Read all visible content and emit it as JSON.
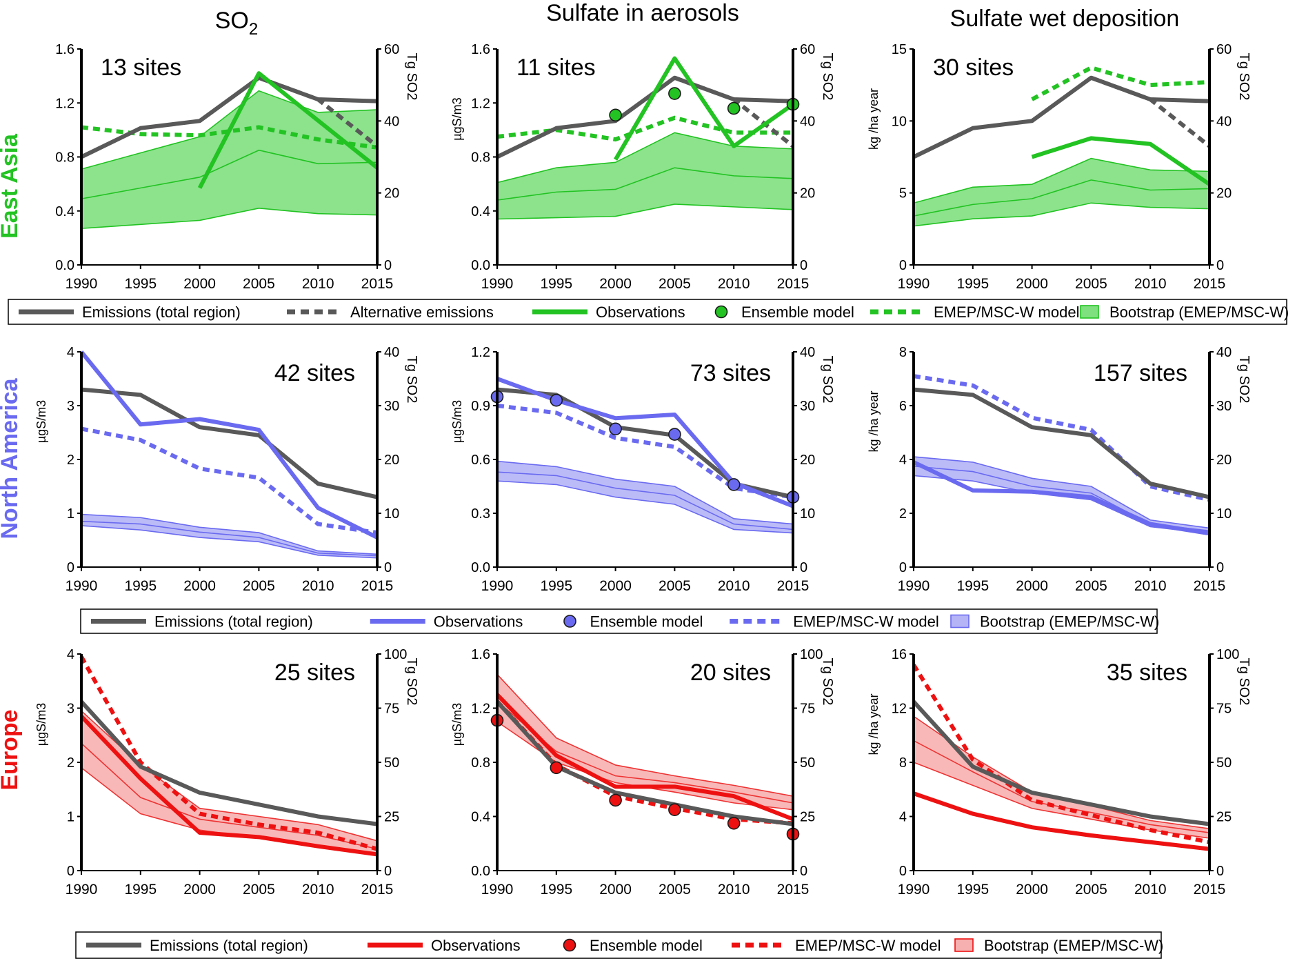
{
  "column_titles": [
    "SO",
    "Sulfate in aerosols",
    "Sulfate  wet deposition"
  ],
  "so2_title_subscript": "2",
  "row_labels": [
    "East Asia",
    "North America",
    "Europe"
  ],
  "colors": {
    "emissions": "#595959",
    "east_asia": "#22c322",
    "east_asia_fill": "#7fe07f",
    "east_asia_fill_line": "#22c322",
    "north_america": "#6a6af0",
    "north_america_fill": "#b4b4f7",
    "north_america_fill_line": "#6a6af0",
    "europe": "#ee1111",
    "europe_fill": "#f7b0b0",
    "europe_fill_line": "#ee3333"
  },
  "legends": [
    {
      "row": 0,
      "items": [
        {
          "label": "Emissions (total region)",
          "type": "solid",
          "color": "emissions"
        },
        {
          "label": "Alternative emissions",
          "type": "dash",
          "color": "emissions"
        },
        {
          "label": "Observations",
          "type": "solid",
          "color": "east_asia"
        },
        {
          "label": "Ensemble model",
          "type": "circle",
          "color": "east_asia"
        },
        {
          "label": "EMEP/MSC-W model",
          "type": "dash",
          "color": "east_asia"
        },
        {
          "label": "Bootstrap (EMEP/MSC-W)",
          "type": "box",
          "color": "east_asia"
        }
      ]
    },
    {
      "row": 1,
      "items": [
        {
          "label": "Emissions (total region)",
          "type": "solid",
          "color": "emissions"
        },
        {
          "label": "Observations",
          "type": "solid",
          "color": "north_america"
        },
        {
          "label": "Ensemble model",
          "type": "circle",
          "color": "north_america"
        },
        {
          "label": "EMEP/MSC-W model",
          "type": "dash",
          "color": "north_america"
        },
        {
          "label": "Bootstrap (EMEP/MSC-W)",
          "type": "box",
          "color": "north_america"
        }
      ]
    },
    {
      "row": 2,
      "items": [
        {
          "label": "Emissions (total region)",
          "type": "solid",
          "color": "emissions"
        },
        {
          "label": "Observations",
          "type": "solid",
          "color": "europe"
        },
        {
          "label": "Ensemble model",
          "type": "circle",
          "color": "europe"
        },
        {
          "label": "EMEP/MSC-W model",
          "type": "dash",
          "color": "europe"
        },
        {
          "label": "Bootstrap (EMEP/MSC-W)",
          "type": "box",
          "color": "europe"
        }
      ]
    }
  ],
  "chart_data": [
    {
      "type": "line",
      "row": 0,
      "col": 0,
      "region": "east_asia",
      "annotation": "13 sites",
      "x": [
        1990,
        1995,
        2000,
        2005,
        2010,
        2015
      ],
      "ylabel": "",
      "ylim": [
        0,
        1.6
      ],
      "yticks": [
        "0.0",
        "0.4",
        "0.8",
        "1.2",
        "1.6"
      ],
      "y2label": "Tg SO2",
      "y2lim": [
        0,
        60
      ],
      "y2ticks": [
        "0",
        "20",
        "40",
        "60"
      ],
      "emissions": [
        30,
        38,
        40,
        52,
        46,
        45.5
      ],
      "alt_emissions": {
        "x": [
          2005,
          2010,
          2015
        ],
        "values": [
          52,
          46,
          33
        ]
      },
      "observations": {
        "x": [
          2000,
          2005,
          2015
        ],
        "values": [
          0.57,
          1.42,
          0.72
        ]
      },
      "ensemble": null,
      "emep": [
        1.02,
        0.97,
        0.96,
        1.02,
        0.93,
        0.87
      ],
      "bootstrap": {
        "lower": [
          0.27,
          0.3,
          0.33,
          0.42,
          0.38,
          0.37
        ],
        "median": [
          0.49,
          0.57,
          0.65,
          0.85,
          0.75,
          0.76
        ],
        "upper": [
          0.71,
          0.83,
          0.95,
          1.29,
          1.13,
          1.15
        ]
      }
    },
    {
      "type": "line",
      "row": 0,
      "col": 1,
      "region": "east_asia",
      "annotation": "11 sites",
      "x": [
        1990,
        1995,
        2000,
        2005,
        2010,
        2015
      ],
      "ylabel": "µgS/m3",
      "ylim": [
        0,
        1.6
      ],
      "yticks": [
        "0.0",
        "0.4",
        "0.8",
        "1.2",
        "1.6"
      ],
      "y2label": "Tg SO2",
      "y2lim": [
        0,
        60
      ],
      "y2ticks": [
        "0",
        "20",
        "40",
        "60"
      ],
      "emissions": [
        30,
        38,
        40,
        52,
        46,
        45.5
      ],
      "alt_emissions": {
        "x": [
          2005,
          2010,
          2015
        ],
        "values": [
          52,
          46,
          33
        ]
      },
      "observations": {
        "x": [
          2000,
          2005,
          2010,
          2015
        ],
        "values": [
          0.78,
          1.53,
          0.88,
          1.19
        ]
      },
      "ensemble": {
        "x": [
          2000,
          2005,
          2010,
          2015
        ],
        "values": [
          1.11,
          1.27,
          1.16,
          1.19
        ]
      },
      "emep": [
        0.95,
        1.0,
        0.93,
        1.09,
        0.98,
        0.98
      ],
      "bootstrap": {
        "lower": [
          0.34,
          0.35,
          0.36,
          0.45,
          0.43,
          0.41
        ],
        "median": [
          0.48,
          0.54,
          0.56,
          0.72,
          0.66,
          0.64
        ],
        "upper": [
          0.61,
          0.72,
          0.76,
          0.98,
          0.88,
          0.86
        ]
      }
    },
    {
      "type": "line",
      "row": 0,
      "col": 2,
      "region": "east_asia",
      "annotation": "30 sites",
      "x": [
        1990,
        1995,
        2000,
        2005,
        2010,
        2015
      ],
      "ylabel": "kg /ha year",
      "ylim": [
        0,
        15
      ],
      "yticks": [
        "0",
        "5",
        "10",
        "15"
      ],
      "y2label": "Tg SO2",
      "y2lim": [
        0,
        60
      ],
      "y2ticks": [
        "0",
        "20",
        "40",
        "60"
      ],
      "emissions": [
        30,
        38,
        40,
        52,
        46,
        45.5
      ],
      "alt_emissions": {
        "x": [
          2005,
          2010,
          2015
        ],
        "values": [
          52,
          46,
          33
        ]
      },
      "observations": {
        "x": [
          2000,
          2005,
          2010,
          2015
        ],
        "values": [
          7.5,
          8.8,
          8.4,
          5.6
        ]
      },
      "ensemble": null,
      "emep": {
        "x": [
          2000,
          2005,
          2010,
          2015
        ],
        "values": [
          11.5,
          13.7,
          12.5,
          12.7
        ]
      },
      "bootstrap": {
        "lower": [
          2.7,
          3.2,
          3.4,
          4.3,
          4.0,
          3.9
        ],
        "median": [
          3.4,
          4.2,
          4.6,
          5.9,
          5.2,
          5.3
        ],
        "upper": [
          4.3,
          5.4,
          5.6,
          7.4,
          6.6,
          6.5
        ]
      }
    },
    {
      "type": "line",
      "row": 1,
      "col": 0,
      "region": "north_america",
      "annotation": "42 sites",
      "x": [
        1990,
        1995,
        2000,
        2005,
        2010,
        2015
      ],
      "ylabel": "µgS/m3",
      "ylim": [
        0,
        4
      ],
      "yticks": [
        "0",
        "1",
        "2",
        "3",
        "4"
      ],
      "y2label": "Tg SO2",
      "y2lim": [
        0,
        40
      ],
      "y2ticks": [
        "0",
        "10",
        "20",
        "30",
        "40"
      ],
      "emissions": [
        33,
        32,
        26,
        24.5,
        15.5,
        13
      ],
      "alt_emissions": null,
      "observations": {
        "x": [
          1990,
          1995,
          2000,
          2005,
          2010,
          2015
        ],
        "values": [
          4.0,
          2.65,
          2.75,
          2.55,
          1.1,
          0.55
        ]
      },
      "ensemble": null,
      "emep": [
        2.57,
        2.36,
        1.83,
        1.66,
        0.8,
        0.64
      ],
      "bootstrap": {
        "lower": [
          0.77,
          0.69,
          0.55,
          0.47,
          0.22,
          0.17
        ],
        "median": [
          0.85,
          0.8,
          0.65,
          0.55,
          0.26,
          0.21
        ],
        "upper": [
          0.98,
          0.92,
          0.74,
          0.64,
          0.3,
          0.24
        ]
      }
    },
    {
      "type": "line",
      "row": 1,
      "col": 1,
      "region": "north_america",
      "annotation": "73 sites",
      "x": [
        1990,
        1995,
        2000,
        2005,
        2010,
        2015
      ],
      "ylabel": "µgS/m3",
      "ylim": [
        0,
        1.2
      ],
      "yticks": [
        "0.0",
        "0.3",
        "0.6",
        "0.9",
        "1.2"
      ],
      "y2label": "Tg SO2",
      "y2lim": [
        0,
        40
      ],
      "y2ticks": [
        "0",
        "10",
        "20",
        "30",
        "40"
      ],
      "emissions": [
        33,
        32,
        26,
        24.5,
        15.5,
        13
      ],
      "alt_emissions": null,
      "observations": {
        "x": [
          1990,
          1995,
          2000,
          2005,
          2010,
          2015
        ],
        "values": [
          1.05,
          0.93,
          0.83,
          0.85,
          0.47,
          0.34
        ]
      },
      "ensemble": {
        "x": [
          1990,
          1995,
          2000,
          2005,
          2010,
          2015
        ],
        "values": [
          0.95,
          0.93,
          0.77,
          0.74,
          0.46,
          0.39
        ]
      },
      "emep": [
        0.9,
        0.86,
        0.72,
        0.67,
        0.44,
        0.39
      ],
      "bootstrap": {
        "lower": [
          0.48,
          0.46,
          0.39,
          0.35,
          0.21,
          0.19
        ],
        "median": [
          0.53,
          0.51,
          0.44,
          0.4,
          0.24,
          0.21
        ],
        "upper": [
          0.59,
          0.56,
          0.49,
          0.45,
          0.27,
          0.24
        ]
      }
    },
    {
      "type": "line",
      "row": 1,
      "col": 2,
      "region": "north_america",
      "annotation": "157 sites",
      "x": [
        1990,
        1995,
        2000,
        2005,
        2010,
        2015
      ],
      "ylabel": "kg /ha year",
      "ylim": [
        0,
        8
      ],
      "yticks": [
        "0",
        "2",
        "4",
        "6",
        "8"
      ],
      "y2label": "Tg SO2",
      "y2lim": [
        0,
        40
      ],
      "y2ticks": [
        "0",
        "10",
        "20",
        "30",
        "40"
      ],
      "emissions": [
        33,
        32,
        26,
        24.5,
        15.5,
        13
      ],
      "alt_emissions": null,
      "observations": {
        "x": [
          1990,
          1995,
          2000,
          2005,
          2010,
          2015
        ],
        "values": [
          3.9,
          2.85,
          2.8,
          2.6,
          1.6,
          1.25
        ]
      },
      "ensemble": null,
      "emep": [
        7.1,
        6.75,
        5.55,
        5.1,
        3.0,
        2.5
      ],
      "bootstrap": {
        "lower": [
          3.4,
          3.2,
          2.75,
          2.5,
          1.5,
          1.25
        ],
        "median": [
          3.75,
          3.55,
          3.0,
          2.75,
          1.6,
          1.35
        ],
        "upper": [
          4.1,
          3.9,
          3.3,
          3.0,
          1.75,
          1.45
        ]
      }
    },
    {
      "type": "line",
      "row": 2,
      "col": 0,
      "region": "europe",
      "annotation": "25 sites",
      "x": [
        1990,
        1995,
        2000,
        2005,
        2010,
        2015
      ],
      "ylabel": "µgS/m3",
      "ylim": [
        0,
        4
      ],
      "yticks": [
        "0",
        "1",
        "2",
        "3",
        "4"
      ],
      "y2label": "Tg SO2",
      "y2lim": [
        0,
        100
      ],
      "y2ticks": [
        "0",
        "25",
        "50",
        "75",
        "100"
      ],
      "emissions": [
        78,
        48,
        36,
        30.5,
        25,
        21.5
      ],
      "alt_emissions": null,
      "observations": {
        "x": [
          1990,
          1995,
          2000,
          2005,
          2010,
          2015
        ],
        "values": [
          2.85,
          1.7,
          0.7,
          0.62,
          0.45,
          0.3
        ]
      },
      "ensemble": null,
      "emep": [
        3.95,
        2.0,
        1.05,
        0.85,
        0.7,
        0.4
      ],
      "bootstrap": {
        "lower": [
          1.9,
          1.05,
          0.75,
          0.6,
          0.45,
          0.28
        ],
        "median": [
          2.35,
          1.35,
          0.95,
          0.8,
          0.65,
          0.4
        ],
        "upper": [
          2.95,
          1.95,
          1.15,
          1.0,
          0.85,
          0.55
        ]
      }
    },
    {
      "type": "line",
      "row": 2,
      "col": 1,
      "region": "europe",
      "annotation": "20 sites",
      "x": [
        1990,
        1995,
        2000,
        2005,
        2010,
        2015
      ],
      "ylabel": "µgS/m3",
      "ylim": [
        0,
        1.6
      ],
      "yticks": [
        "0.0",
        "0.4",
        "0.8",
        "1.2",
        "1.6"
      ],
      "y2label": "Tg SO2",
      "y2lim": [
        0,
        100
      ],
      "y2ticks": [
        "0",
        "25",
        "50",
        "75",
        "100"
      ],
      "emissions": [
        78,
        48,
        36,
        30.5,
        25,
        21.5
      ],
      "alt_emissions": null,
      "observations": {
        "x": [
          1990,
          1995,
          2000,
          2005,
          2010,
          2015
        ],
        "values": [
          1.3,
          0.85,
          0.62,
          0.62,
          0.55,
          0.38
        ]
      },
      "ensemble": {
        "x": [
          1990,
          1995,
          2000,
          2005,
          2010,
          2015
        ],
        "values": [
          1.11,
          0.76,
          0.52,
          0.45,
          0.35,
          0.27
        ]
      },
      "emep": [
        1.25,
        0.78,
        0.55,
        0.46,
        0.38,
        0.35
      ],
      "bootstrap": {
        "lower": [
          1.1,
          0.8,
          0.65,
          0.58,
          0.5,
          0.45
        ],
        "median": [
          1.25,
          0.88,
          0.7,
          0.65,
          0.58,
          0.5
        ],
        "upper": [
          1.45,
          0.98,
          0.78,
          0.7,
          0.63,
          0.55
        ]
      }
    },
    {
      "type": "line",
      "row": 2,
      "col": 2,
      "region": "europe",
      "annotation": "35 sites",
      "x": [
        1990,
        1995,
        2000,
        2005,
        2010,
        2015
      ],
      "ylabel": "kg /ha year",
      "ylim": [
        0,
        16
      ],
      "yticks": [
        "0",
        "4",
        "8",
        "12",
        "16"
      ],
      "y2label": "Tg SO2",
      "y2lim": [
        0,
        100
      ],
      "y2ticks": [
        "0",
        "25",
        "50",
        "75",
        "100"
      ],
      "emissions": [
        78,
        48,
        36,
        30.5,
        25,
        21.5
      ],
      "alt_emissions": null,
      "observations": {
        "x": [
          1990,
          1995,
          2000,
          2005,
          2010,
          2015
        ],
        "values": [
          5.7,
          4.2,
          3.2,
          2.6,
          2.1,
          1.6
        ]
      },
      "ensemble": null,
      "emep": [
        15.2,
        8.2,
        5.2,
        4.1,
        3.0,
        2.1
      ],
      "bootstrap": {
        "lower": [
          8.0,
          6.3,
          4.6,
          3.8,
          3.0,
          2.4
        ],
        "median": [
          9.6,
          7.3,
          5.1,
          4.3,
          3.4,
          2.8
        ],
        "upper": [
          11.4,
          8.4,
          5.8,
          4.8,
          3.7,
          3.1
        ]
      }
    }
  ]
}
